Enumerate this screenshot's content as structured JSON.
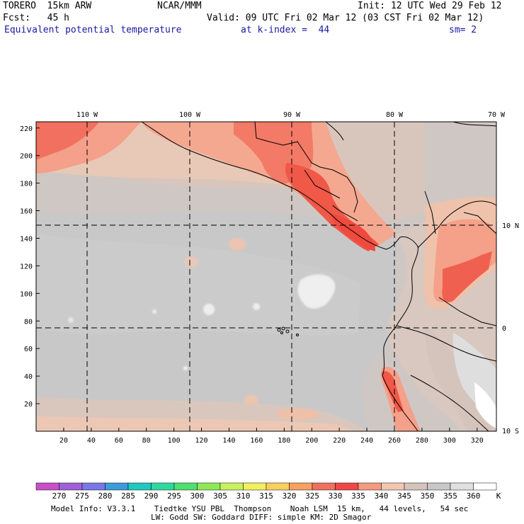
{
  "header": {
    "model": "TORERO  15km ARW",
    "center": "NCAR/MMM",
    "init": "Init: 12 UTC Wed 29 Feb 12",
    "fcst": "Fcst:   45 h",
    "valid": "Valid: 09 UTC Fri 02 Mar 12 (03 CST Fri 02 Mar 12)",
    "field": "Equivalent potential temperature",
    "level": "at k-index =  44",
    "smooth": "sm= 2"
  },
  "axes": {
    "x_ticks": [
      "20",
      "40",
      "60",
      "80",
      "100",
      "120",
      "140",
      "160",
      "180",
      "200",
      "220",
      "240",
      "260",
      "280",
      "300",
      "320"
    ],
    "y_ticks": [
      "20",
      "40",
      "60",
      "80",
      "100",
      "120",
      "140",
      "160",
      "180",
      "200",
      "220"
    ],
    "lon_labels": [
      "110 W",
      "100 W",
      "90 W",
      "80 W",
      "70 W"
    ],
    "lat_labels": [
      "10 N",
      "0",
      "10 S"
    ]
  },
  "colorbar": {
    "unit": "K",
    "labels": [
      "270",
      "275",
      "280",
      "285",
      "290",
      "295",
      "300",
      "305",
      "310",
      "315",
      "320",
      "325",
      "330",
      "335",
      "340",
      "345",
      "350",
      "355",
      "360"
    ],
    "colors": [
      "#c84fc8",
      "#a060d8",
      "#7878e8",
      "#3c9cd8",
      "#20c8c0",
      "#30d8a0",
      "#50e070",
      "#90e858",
      "#c8f060",
      "#f0f060",
      "#f8d060",
      "#f8a060",
      "#f07060",
      "#f04848",
      "#f49a80",
      "#f0c8b0",
      "#d4c4bc",
      "#c8c8c8",
      "#e0e0e0",
      "#ffffff"
    ]
  },
  "footer": {
    "line1": "Model Info: V3.3.1    Tiedtke YSU PBL  Thompson    Noah LSM  15 km,   44 levels,   54 sec",
    "line2": "LW: Godd SW: Goddard DIFF: simple KM: 2D Smagor"
  }
}
